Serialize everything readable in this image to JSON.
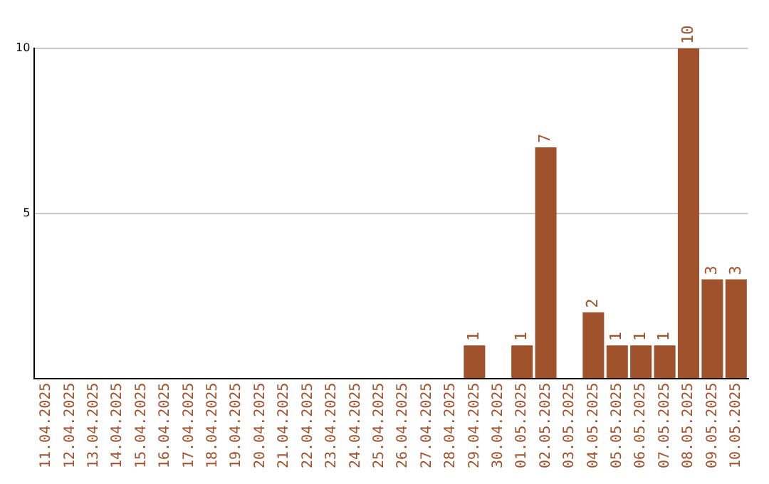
{
  "chart_data": {
    "type": "bar",
    "categories": [
      "11.04.2025",
      "12.04.2025",
      "13.04.2025",
      "14.04.2025",
      "15.04.2025",
      "16.04.2025",
      "17.04.2025",
      "18.04.2025",
      "19.04.2025",
      "20.04.2025",
      "21.04.2025",
      "22.04.2025",
      "23.04.2025",
      "24.04.2025",
      "25.04.2025",
      "26.04.2025",
      "27.04.2025",
      "28.04.2025",
      "29.04.2025",
      "30.04.2025",
      "01.05.2025",
      "02.05.2025",
      "03.05.2025",
      "04.05.2025",
      "05.05.2025",
      "06.05.2025",
      "07.05.2025",
      "08.05.2025",
      "09.05.2025",
      "10.05.2025"
    ],
    "values": [
      0,
      0,
      0,
      0,
      0,
      0,
      0,
      0,
      0,
      0,
      0,
      0,
      0,
      0,
      0,
      0,
      0,
      0,
      1,
      0,
      1,
      7,
      0,
      2,
      1,
      1,
      1,
      10,
      3,
      3
    ],
    "value_labels": [
      null,
      null,
      null,
      null,
      null,
      null,
      null,
      null,
      null,
      null,
      null,
      null,
      null,
      null,
      null,
      null,
      null,
      null,
      "1",
      null,
      "1",
      "7",
      null,
      "2",
      "1",
      "1",
      "1",
      "10",
      "3",
      "3"
    ],
    "color": "#a0522d",
    "ylim": [
      0,
      10
    ],
    "yticks": [
      5,
      10
    ],
    "grid": "y",
    "legend": false
  }
}
